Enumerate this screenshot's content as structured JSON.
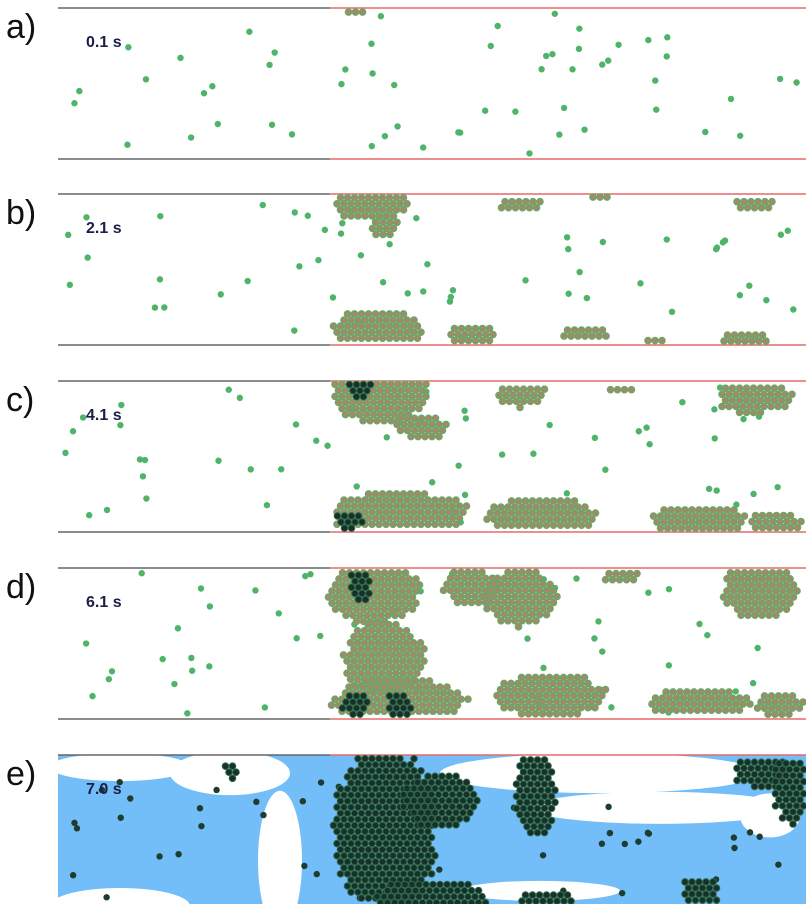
{
  "panels": [
    {
      "label": "a)",
      "time": "0.1 s"
    },
    {
      "label": "b)",
      "time": "2.1 s"
    },
    {
      "label": "c)",
      "time": "4.1 s"
    },
    {
      "label": "d)",
      "time": "6.1 s"
    },
    {
      "label": "e)",
      "time": "7.0 s"
    }
  ]
}
